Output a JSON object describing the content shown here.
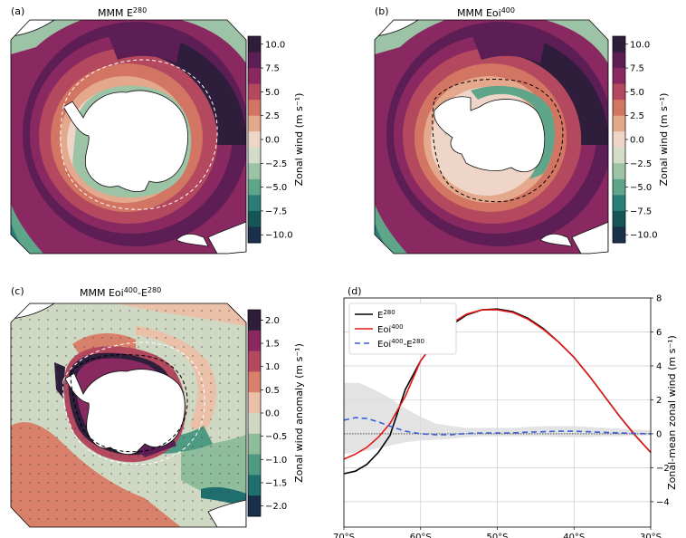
{
  "panels": {
    "a": {
      "letter": "(a)",
      "title": "MMM E",
      "title_sup": "280"
    },
    "b": {
      "letter": "(b)",
      "title": "MMM Eoi",
      "title_sup": "400"
    },
    "c": {
      "letter": "(c)",
      "title_parts": [
        "MMM Eoi",
        "400",
        "-E",
        "280"
      ]
    },
    "d": {
      "letter": "(d)"
    }
  },
  "colorbars": {
    "wind": {
      "label": "Zonal wind (m s⁻¹)",
      "ticks": [
        "10.0",
        "7.5",
        "5.0",
        "2.5",
        "0.0",
        "−2.5",
        "−5.0",
        "−7.5",
        "−10.0"
      ],
      "colors": [
        "#2e1d3b",
        "#5c1e55",
        "#8a2961",
        "#b3485f",
        "#d27563",
        "#e4a88c",
        "#eed5c7",
        "#d2dcc8",
        "#9cc3a6",
        "#5fa58a",
        "#2a7d78",
        "#175658",
        "#1a2f4a"
      ]
    },
    "anomaly": {
      "label": "Zonal wind anomaly (m s⁻¹)",
      "ticks": [
        "2.0",
        "1.5",
        "1.0",
        "0.5",
        "0.0",
        "−0.5",
        "−1.0",
        "−1.5",
        "−2.0"
      ],
      "colors": [
        "#2e1d3b",
        "#8a2961",
        "#b3485f",
        "#d9806a",
        "#eac0a8",
        "#cfd8c2",
        "#8fbd9c",
        "#4e9a83",
        "#1f6f6e",
        "#1a2f4a"
      ]
    }
  },
  "chart_data": {
    "type": "line",
    "xlabel": "",
    "ylabel": "Zonal-mean zonal wind (m s⁻¹)",
    "xlim": [
      -70,
      -30
    ],
    "ylim": [
      -5.5,
      8
    ],
    "xticks": [
      -70,
      -60,
      -50,
      -40,
      -30
    ],
    "xtick_labels": [
      "70°S",
      "60°S",
      "50°S",
      "40°S",
      "30°S"
    ],
    "yticks": [
      -4,
      -2,
      0,
      2,
      4,
      6,
      8
    ],
    "ytick_labels": [
      "−4",
      "−2",
      "0",
      "2",
      "4",
      "6",
      "8"
    ],
    "grid": true,
    "legend_position": "top-left",
    "series": [
      {
        "name": "E",
        "name_sup": "280",
        "color": "#000000",
        "dash": "none",
        "x": [
          -70,
          -68.5,
          -67,
          -65.5,
          -64,
          -62,
          -60,
          -58,
          -56,
          -54,
          -52,
          -50,
          -48,
          -46,
          -44,
          -42,
          -40,
          -38,
          -36,
          -34,
          -32,
          -30
        ],
        "y": [
          -2.35,
          -2.2,
          -1.8,
          -1.1,
          -0.1,
          2.6,
          4.3,
          5.5,
          6.4,
          7.0,
          7.3,
          7.35,
          7.2,
          6.8,
          6.2,
          5.4,
          4.5,
          3.4,
          2.2,
          1.0,
          -0.1,
          -1.1
        ]
      },
      {
        "name": "Eoi",
        "name_sup": "400",
        "color": "#e31a1c",
        "dash": "none",
        "x": [
          -70,
          -68.5,
          -67,
          -65.5,
          -64,
          -62,
          -60,
          -58,
          -56,
          -54,
          -52,
          -50,
          -48,
          -46,
          -44,
          -42,
          -40,
          -38,
          -36,
          -34,
          -32,
          -30
        ],
        "y": [
          -1.5,
          -1.2,
          -0.8,
          -0.2,
          0.6,
          2.2,
          4.3,
          5.5,
          6.5,
          7.05,
          7.3,
          7.3,
          7.15,
          6.75,
          6.15,
          5.4,
          4.5,
          3.4,
          2.2,
          1.0,
          -0.1,
          -1.1
        ]
      },
      {
        "name": "Eoi",
        "name_sup": "400",
        "name_mid": "-E",
        "name_sup2": "280",
        "color": "#3a5fd6",
        "dash": "6,4",
        "x": [
          -70,
          -68.5,
          -67,
          -65.5,
          -64,
          -62,
          -60,
          -58,
          -56,
          -54,
          -52,
          -50,
          -48,
          -46,
          -44,
          -42,
          -40,
          -38,
          -36,
          -34,
          -32,
          -30
        ],
        "y": [
          0.8,
          0.95,
          0.9,
          0.7,
          0.45,
          0.15,
          0.0,
          -0.05,
          -0.05,
          0.02,
          0.05,
          0.05,
          0.05,
          0.1,
          0.12,
          0.15,
          0.15,
          0.12,
          0.08,
          0.05,
          0.02,
          0.0
        ]
      }
    ],
    "spread_band": {
      "x": [
        -70,
        -68,
        -66,
        -64,
        -62,
        -60,
        -58,
        -56,
        -54,
        -52,
        -50,
        -48,
        -46,
        -44,
        -42,
        -40,
        -38,
        -36,
        -34,
        -32,
        -30
      ],
      "upper": [
        3.0,
        3.0,
        2.6,
        2.1,
        1.5,
        1.0,
        0.6,
        0.45,
        0.35,
        0.35,
        0.35,
        0.35,
        0.4,
        0.45,
        0.45,
        0.45,
        0.4,
        0.35,
        0.3,
        0.25,
        0.2
      ],
      "lower": [
        -1.2,
        -1.1,
        -0.9,
        -0.7,
        -0.5,
        -0.4,
        -0.35,
        -0.3,
        -0.2,
        -0.15,
        -0.15,
        -0.15,
        -0.15,
        -0.15,
        -0.2,
        -0.2,
        -0.2,
        -0.15,
        -0.15,
        -0.1,
        -0.1
      ]
    }
  }
}
